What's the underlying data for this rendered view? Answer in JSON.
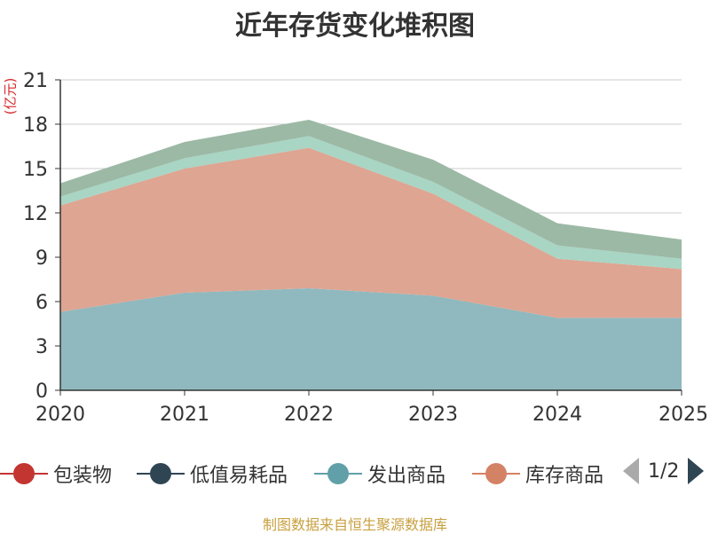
{
  "title": "近年存货变化堆积图",
  "unit_label": "(亿元)",
  "legend": {
    "items": [
      {
        "label": "包装物",
        "color": "#c23531"
      },
      {
        "label": "低值易耗品",
        "color": "#2f4554"
      },
      {
        "label": "发出商品",
        "color": "#61a0a8"
      },
      {
        "label": "库存商品",
        "color": "#d48265"
      }
    ],
    "page_indicator": "1/2"
  },
  "source": "制图数据来自恒生聚源数据库",
  "chart_data": {
    "type": "area",
    "stacked": true,
    "x": [
      "2020",
      "2021",
      "2022",
      "2023",
      "2024",
      "2025"
    ],
    "ylim": [
      0,
      21
    ],
    "yticks": [
      0,
      3,
      6,
      9,
      12,
      15,
      18,
      21
    ],
    "grid": true,
    "series": [
      {
        "name": "发出商品",
        "color": "#8fb9bf",
        "values": [
          5.3,
          6.6,
          6.9,
          6.4,
          4.9,
          4.9
        ]
      },
      {
        "name": "库存商品",
        "color": "#dea592",
        "values": [
          7.2,
          8.4,
          9.5,
          6.9,
          4.0,
          3.3
        ]
      },
      {
        "name": "",
        "color": "#a8d5c4",
        "values": [
          0.6,
          0.7,
          0.8,
          0.8,
          0.9,
          0.7
        ]
      },
      {
        "name": "",
        "color": "#9cb9a5",
        "values": [
          0.9,
          1.1,
          1.1,
          1.5,
          1.5,
          1.3
        ]
      }
    ]
  }
}
